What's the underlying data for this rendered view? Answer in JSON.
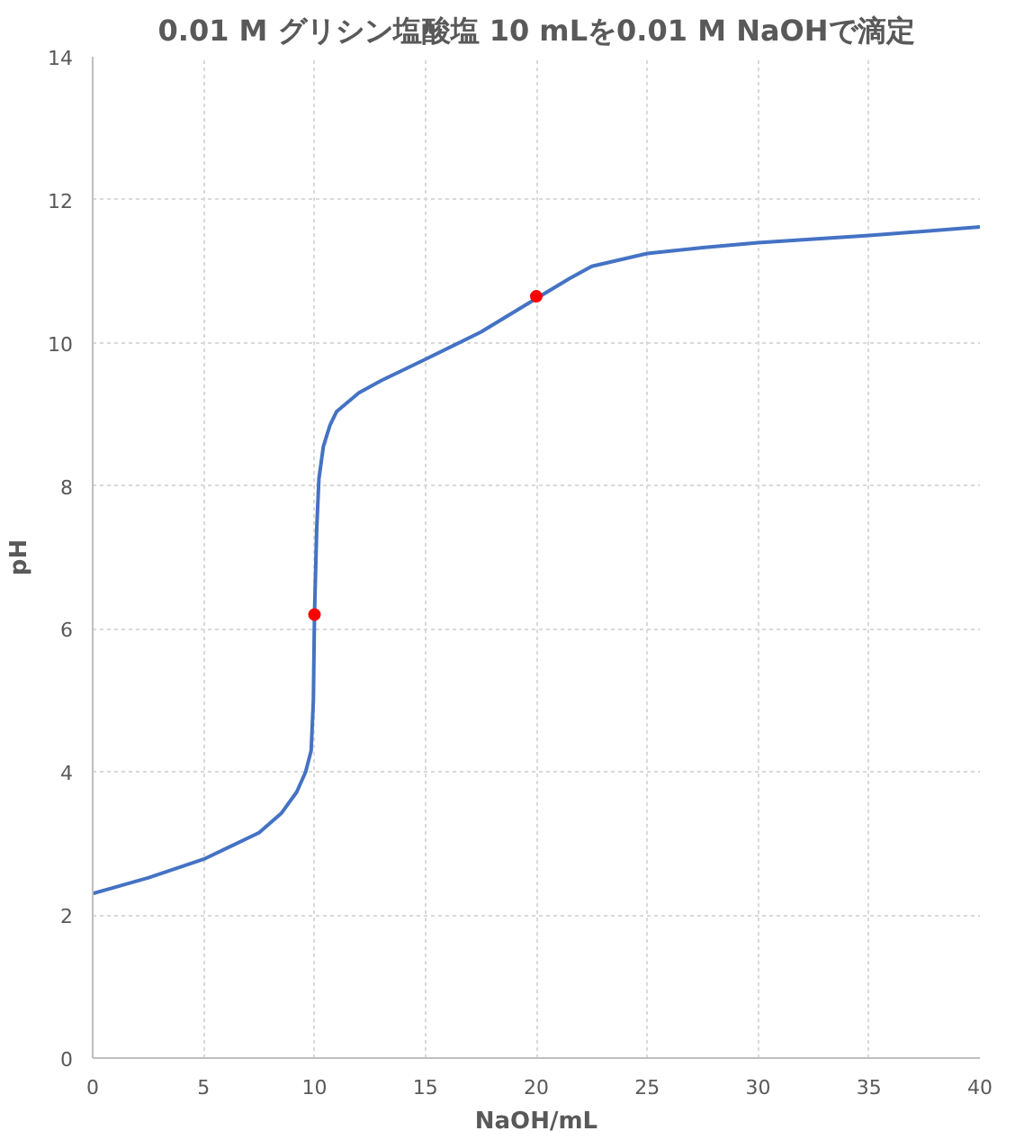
{
  "chart_data": {
    "type": "line",
    "title": "0.01 M グリシン塩酸塩 10 mLを0.01 M NaOHで滴定",
    "xlabel": "NaOH/mL",
    "ylabel": "pH",
    "xlim": [
      0,
      40
    ],
    "ylim": [
      0,
      14
    ],
    "xticks": [
      0,
      5,
      10,
      15,
      20,
      25,
      30,
      35,
      40
    ],
    "yticks": [
      0,
      2,
      4,
      6,
      8,
      10,
      12,
      14
    ],
    "grid": true,
    "series": [
      {
        "color": "#4472c4",
        "x": [
          0,
          2.5,
          5,
          7.5,
          8.5,
          9.2,
          9.6,
          9.85,
          9.95,
          10.0,
          10.1,
          10.2,
          10.4,
          10.7,
          11,
          12,
          13,
          15,
          17.5,
          20,
          21.5,
          22.5,
          25,
          27.5,
          30,
          35,
          40
        ],
        "values": [
          2.3,
          2.52,
          2.78,
          3.15,
          3.42,
          3.72,
          4.0,
          4.3,
          5.0,
          6.2,
          7.4,
          8.1,
          8.55,
          8.85,
          9.04,
          9.3,
          9.47,
          9.77,
          10.15,
          10.62,
          10.9,
          11.07,
          11.25,
          11.33,
          11.4,
          11.5,
          11.62
        ]
      },
      {
        "type": "scatter",
        "color": "#ff0000",
        "marker": "circle",
        "x": [
          10,
          20
        ],
        "values": [
          6.2,
          10.65
        ]
      }
    ]
  }
}
